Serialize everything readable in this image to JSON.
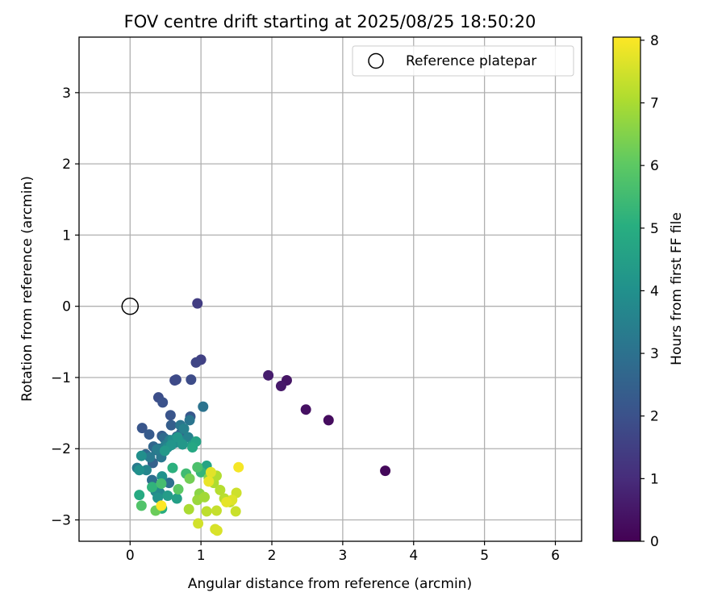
{
  "chart_data": {
    "type": "scatter",
    "title": "FOV centre drift starting at 2025/08/25 18:50:20",
    "xlabel": "Angular distance from reference (arcmin)",
    "ylabel": "Rotation from reference (arcmin)",
    "xlim": [
      -0.72,
      6.37
    ],
    "ylim": [
      -3.3,
      3.78
    ],
    "xticks": [
      0,
      1,
      2,
      3,
      4,
      5,
      6
    ],
    "yticks": [
      -3,
      -2,
      -1,
      0,
      1,
      2,
      3
    ],
    "grid": true,
    "legend": {
      "position": "upper right",
      "entries": [
        "Reference platepar"
      ]
    },
    "reference_point": {
      "x": 0,
      "y": 0
    },
    "colorbar": {
      "label": "Hours from first FF file",
      "colormap": "viridis",
      "range": [
        0,
        8.05
      ],
      "ticks": [
        0,
        1,
        2,
        3,
        4,
        5,
        6,
        7,
        8
      ]
    },
    "points": [
      [
        3.6,
        -2.31,
        0.15
      ],
      [
        2.8,
        -1.6,
        0.25
      ],
      [
        2.48,
        -1.45,
        0.35
      ],
      [
        2.21,
        -1.04,
        0.45
      ],
      [
        2.13,
        -1.12,
        0.55
      ],
      [
        1.95,
        -0.97,
        0.65
      ],
      [
        0.95,
        0.04,
        1.45
      ],
      [
        1.0,
        -0.75,
        1.55
      ],
      [
        0.93,
        -0.79,
        1.65
      ],
      [
        0.63,
        -1.04,
        1.75
      ],
      [
        0.65,
        -1.03,
        1.8
      ],
      [
        0.86,
        -1.03,
        1.85
      ],
      [
        0.4,
        -1.28,
        1.9
      ],
      [
        0.46,
        -1.35,
        2.0
      ],
      [
        0.57,
        -1.53,
        2.1
      ],
      [
        0.17,
        -1.71,
        2.15
      ],
      [
        0.85,
        -1.55,
        2.2
      ],
      [
        0.27,
        -1.8,
        2.3
      ],
      [
        0.45,
        -1.82,
        2.35
      ],
      [
        0.58,
        -1.67,
        2.4
      ],
      [
        0.52,
        -1.88,
        2.45
      ],
      [
        0.32,
        -2.2,
        2.5
      ],
      [
        0.66,
        -1.83,
        2.55
      ],
      [
        0.72,
        -1.78,
        2.6
      ],
      [
        0.33,
        -1.97,
        2.65
      ],
      [
        0.22,
        -2.08,
        2.7
      ],
      [
        0.37,
        -2.02,
        2.75
      ],
      [
        0.48,
        -1.85,
        2.8
      ],
      [
        0.41,
        -2.0,
        2.85
      ],
      [
        0.31,
        -2.44,
        2.9
      ],
      [
        0.55,
        -2.48,
        2.95
      ],
      [
        0.62,
        -1.92,
        3.0
      ],
      [
        1.03,
        -1.41,
        3.05
      ],
      [
        0.84,
        -1.6,
        3.1
      ],
      [
        0.71,
        -1.67,
        3.15
      ],
      [
        0.44,
        -2.12,
        3.2
      ],
      [
        0.28,
        -2.12,
        3.25
      ],
      [
        0.1,
        -2.27,
        3.3
      ],
      [
        0.38,
        -2.01,
        3.35
      ],
      [
        0.5,
        -1.95,
        3.4
      ],
      [
        0.56,
        -1.88,
        3.45
      ],
      [
        0.76,
        -1.72,
        3.5
      ],
      [
        0.82,
        -1.84,
        3.55
      ],
      [
        0.65,
        -1.91,
        3.6
      ],
      [
        0.23,
        -2.3,
        3.65
      ],
      [
        0.42,
        -2.62,
        3.7
      ],
      [
        0.36,
        -2.6,
        3.75
      ],
      [
        0.53,
        -1.98,
        3.8
      ],
      [
        0.6,
        -1.88,
        3.85
      ],
      [
        0.7,
        -1.9,
        3.9
      ],
      [
        0.16,
        -2.1,
        3.95
      ],
      [
        0.13,
        -2.3,
        4.0
      ],
      [
        0.45,
        -2.39,
        4.05
      ],
      [
        0.39,
        -2.69,
        4.1
      ],
      [
        0.58,
        -1.95,
        4.15
      ],
      [
        0.67,
        -1.84,
        4.2
      ],
      [
        0.74,
        -1.94,
        4.25
      ],
      [
        0.49,
        -2.03,
        4.3
      ],
      [
        0.88,
        -1.95,
        4.35
      ],
      [
        0.53,
        -2.66,
        4.4
      ],
      [
        0.66,
        -2.7,
        4.5
      ],
      [
        0.93,
        -1.9,
        4.6
      ],
      [
        1.08,
        -2.24,
        4.7
      ],
      [
        0.88,
        -1.98,
        4.8
      ],
      [
        0.13,
        -2.65,
        4.9
      ],
      [
        0.45,
        -2.84,
        5.0
      ],
      [
        0.6,
        -2.27,
        5.1
      ],
      [
        0.31,
        -2.54,
        5.2
      ],
      [
        1.0,
        -2.33,
        5.3
      ],
      [
        0.79,
        -2.35,
        5.5
      ],
      [
        0.44,
        -2.49,
        5.6
      ],
      [
        0.95,
        -2.26,
        5.7
      ],
      [
        0.16,
        -2.8,
        5.8
      ],
      [
        0.68,
        -2.57,
        6.0
      ],
      [
        0.36,
        -2.87,
        6.2
      ],
      [
        0.84,
        -2.42,
        6.3
      ],
      [
        1.11,
        -2.41,
        6.5
      ],
      [
        0.98,
        -2.63,
        6.6
      ],
      [
        0.95,
        -2.72,
        6.8
      ],
      [
        1.05,
        -2.68,
        6.9
      ],
      [
        0.83,
        -2.85,
        7.0
      ],
      [
        1.18,
        -2.48,
        7.05
      ],
      [
        1.22,
        -2.38,
        7.1
      ],
      [
        1.27,
        -2.58,
        7.15
      ],
      [
        1.33,
        -2.7,
        7.2
      ],
      [
        1.08,
        -2.88,
        7.25
      ],
      [
        1.41,
        -2.75,
        7.3
      ],
      [
        1.22,
        -2.87,
        7.35
      ],
      [
        1.49,
        -2.88,
        7.4
      ],
      [
        1.5,
        -2.62,
        7.45
      ],
      [
        0.96,
        -3.05,
        7.5
      ],
      [
        1.2,
        -3.13,
        7.55
      ],
      [
        1.23,
        -3.15,
        7.6
      ],
      [
        1.44,
        -2.72,
        7.65
      ],
      [
        1.14,
        -2.33,
        7.7
      ],
      [
        1.36,
        -2.75,
        7.75
      ],
      [
        1.11,
        -2.46,
        7.8
      ],
      [
        1.53,
        -2.26,
        7.95
      ],
      [
        0.44,
        -2.8,
        8.05
      ]
    ]
  }
}
